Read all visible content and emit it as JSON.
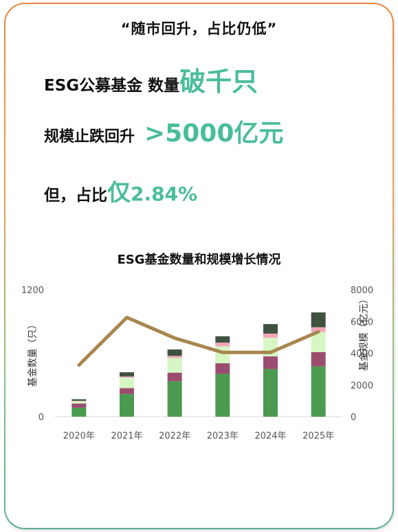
{
  "headline": "“随市回升，占比仍低”",
  "line1": {
    "text": "ESG公募基金 数量",
    "highlight": "破千只"
  },
  "line2": {
    "text": "规模止跌回升",
    "highlight": ">5000亿元"
  },
  "line3": {
    "text": "但，占比",
    "highlight": "仅",
    "highlight_num": "2.84%"
  },
  "colors": {
    "accent": "#49bd9a",
    "line": "#a8864f",
    "seg1": "#4c9a50",
    "seg2": "#9b4d6f",
    "seg3": "#d6f7c3",
    "seg4": "#f4a6b8",
    "seg5": "#3f5240"
  },
  "chart_data": {
    "type": "bar",
    "title": "ESG基金数量和规模增长情况",
    "categories": [
      "2020年",
      "2021年",
      "2022年",
      "2023年",
      "2024年",
      "2025年"
    ],
    "ylabel": "基金数量（只）",
    "y2label": "基金规模（亿元）",
    "ylim": [
      0,
      1200
    ],
    "y_ticks": [
      "0",
      "1200"
    ],
    "y2lim": [
      0,
      8000
    ],
    "y2_ticks": [
      "0",
      "2000",
      "4000",
      "6000",
      "8000"
    ],
    "stacked": true,
    "series": [
      {
        "values": [
          85,
          215,
          335,
          405,
          450,
          475
        ]
      },
      {
        "values": [
          40,
          55,
          80,
          100,
          120,
          135
        ]
      },
      {
        "values": [
          20,
          100,
          140,
          160,
          175,
          190
        ]
      },
      {
        "values": [
          5,
          10,
          20,
          35,
          40,
          45
        ]
      },
      {
        "values": [
          15,
          40,
          60,
          60,
          90,
          140
        ]
      }
    ],
    "line_series": {
      "axis": "right",
      "values": [
        3250,
        6250,
        4950,
        4050,
        4050,
        5350
      ]
    },
    "grid": false,
    "legend": "none"
  }
}
